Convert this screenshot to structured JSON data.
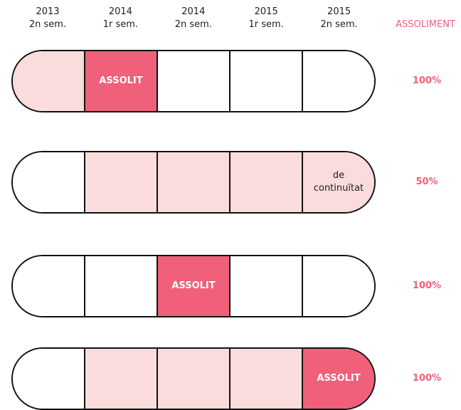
{
  "header": {
    "columns": [
      {
        "year": "2013",
        "semester": "2n sem."
      },
      {
        "year": "2014",
        "semester": "1r sem."
      },
      {
        "year": "2014",
        "semester": "2n sem."
      },
      {
        "year": "2015",
        "semester": "1r sem."
      },
      {
        "year": "2015",
        "semester": "2n sem."
      }
    ],
    "result_title": "ASSOLIMENT",
    "accent_color": "#f0607a"
  },
  "rows": [
    {
      "cells": [
        {
          "fill": "#fadcdc"
        },
        {
          "fill": "#f0607a",
          "label": "ASSOLIT"
        },
        {
          "fill": "#ffffff"
        },
        {
          "fill": "#ffffff"
        },
        {
          "fill": "#ffffff"
        }
      ],
      "result": "100%"
    },
    {
      "cells": [
        {
          "fill": "#ffffff"
        },
        {
          "fill": "#fadcdc"
        },
        {
          "fill": "#fadcdc"
        },
        {
          "fill": "#fadcdc"
        },
        {
          "fill": "#fadcdc",
          "label": "de continuïtat"
        }
      ],
      "result": "50%"
    },
    {
      "cells": [
        {
          "fill": "#ffffff"
        },
        {
          "fill": "#ffffff"
        },
        {
          "fill": "#f0607a",
          "label": "ASSOLIT"
        },
        {
          "fill": "#ffffff"
        },
        {
          "fill": "#ffffff"
        }
      ],
      "result": "100%"
    },
    {
      "cells": [
        {
          "fill": "#ffffff"
        },
        {
          "fill": "#fadcdc"
        },
        {
          "fill": "#fadcdc"
        },
        {
          "fill": "#fadcdc"
        },
        {
          "fill": "#f0607a",
          "label": "ASSOLIT"
        }
      ],
      "result": "100%"
    }
  ]
}
